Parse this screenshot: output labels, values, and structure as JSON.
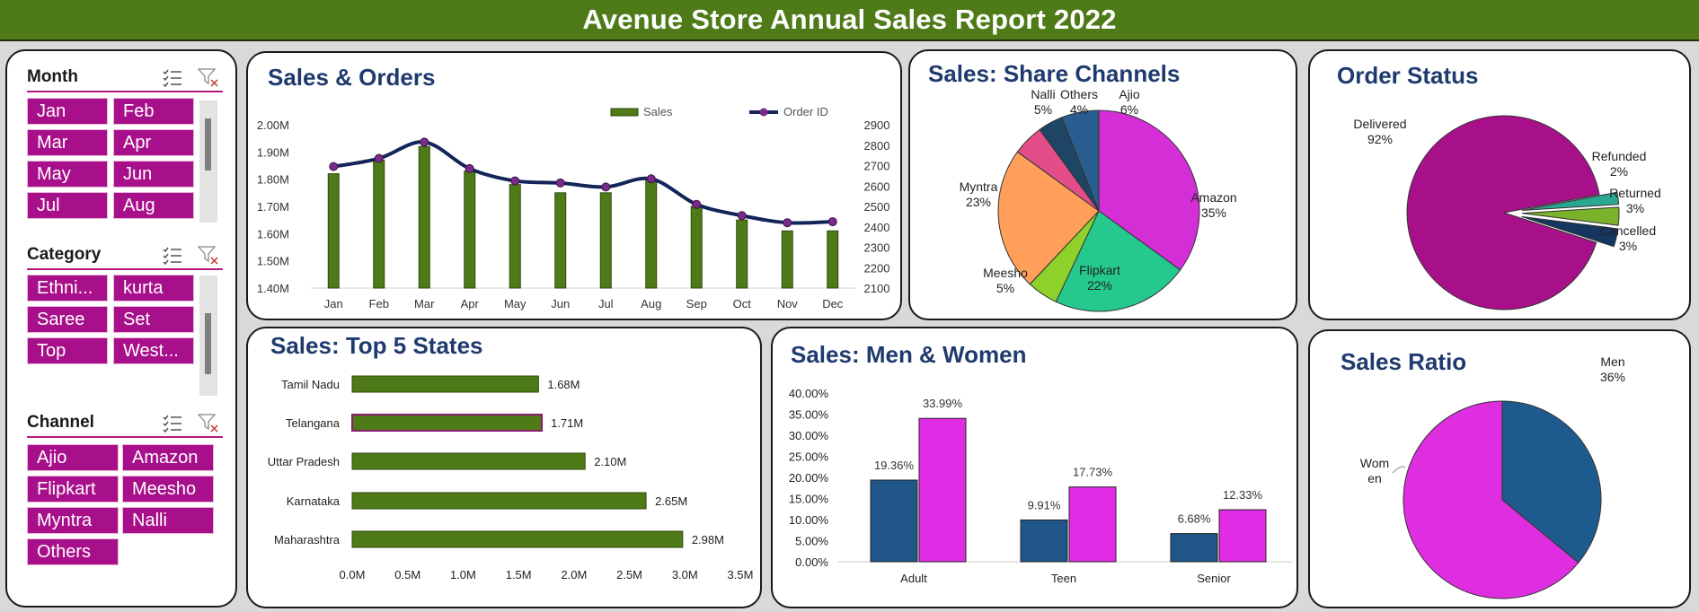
{
  "header": {
    "title": "Avenue Store Annual Sales Report 2022"
  },
  "slicers": {
    "month": {
      "title": "Month",
      "items": [
        "Jan",
        "Feb",
        "Mar",
        "Apr",
        "May",
        "Jun",
        "Jul",
        "Aug"
      ]
    },
    "category": {
      "title": "Category",
      "items": [
        "Ethni...",
        "kurta",
        "Saree",
        "Set",
        "Top",
        "West..."
      ]
    },
    "channel": {
      "title": "Channel",
      "items": [
        "Ajio",
        "Amazon",
        "Flipkart",
        "Meesho",
        "Myntra",
        "Nalli",
        "Others"
      ]
    }
  },
  "colors": {
    "green": "#4f7a18",
    "navy": "#14245a",
    "magenta": "#e12be4",
    "blue": "#1f5589",
    "title_blue": "#1f3a6e",
    "chip": "#a80f8a"
  },
  "chart_data": [
    {
      "id": "sales_orders",
      "type": "bar+line",
      "title": "Sales & Orders",
      "categories": [
        "Jan",
        "Feb",
        "Mar",
        "Apr",
        "May",
        "Jun",
        "Jul",
        "Aug",
        "Sep",
        "Oct",
        "Nov",
        "Dec"
      ],
      "series": [
        {
          "name": "Sales",
          "type": "bar",
          "axis": "left",
          "values": [
            1.82,
            1.87,
            1.92,
            1.83,
            1.78,
            1.75,
            1.75,
            1.8,
            1.7,
            1.65,
            1.61,
            1.61
          ]
        },
        {
          "name": "Order ID",
          "type": "line",
          "axis": "right",
          "values": [
            2695,
            2735,
            2815,
            2685,
            2625,
            2615,
            2595,
            2635,
            2510,
            2455,
            2420,
            2425
          ]
        }
      ],
      "ylim_left": [
        1.4,
        2.0
      ],
      "yticks_left": [
        "1.40M",
        "1.50M",
        "1.60M",
        "1.70M",
        "1.80M",
        "1.90M",
        "2.00M"
      ],
      "ylim_right": [
        2100,
        2900
      ],
      "yticks_right": [
        "2100",
        "2200",
        "2300",
        "2400",
        "2500",
        "2600",
        "2700",
        "2800",
        "2900"
      ],
      "legend": "top-right"
    },
    {
      "id": "share_channels",
      "type": "pie",
      "title": "Sales: Share Channels",
      "slices": [
        {
          "label": "Amazon",
          "value": 35,
          "text": "35%"
        },
        {
          "label": "Flipkart",
          "value": 22,
          "text": "22%"
        },
        {
          "label": "Meesho",
          "value": 5,
          "text": "5%"
        },
        {
          "label": "Myntra",
          "value": 23,
          "text": "23%"
        },
        {
          "label": "Nalli",
          "value": 5,
          "text": "5%"
        },
        {
          "label": "Others",
          "value": 4,
          "text": "4%"
        },
        {
          "label": "Ajio",
          "value": 6,
          "text": "6%"
        }
      ]
    },
    {
      "id": "order_status",
      "type": "pie",
      "title": "Order Status",
      "slices": [
        {
          "label": "Delivered",
          "value": 92,
          "text": "92%"
        },
        {
          "label": "Refunded",
          "value": 2,
          "text": "2%"
        },
        {
          "label": "Returned",
          "value": 3,
          "text": "3%"
        },
        {
          "label": "Cancelled",
          "value": 3,
          "text": "3%"
        }
      ]
    },
    {
      "id": "top5_states",
      "type": "bar",
      "orientation": "horizontal",
      "title": "Sales: Top 5 States",
      "categories": [
        "Tamil Nadu",
        "Telangana",
        "Uttar Pradesh",
        "Karnataka",
        "Maharashtra"
      ],
      "values": [
        1.68,
        1.71,
        2.1,
        2.65,
        2.98
      ],
      "labels": [
        "1.68M",
        "1.71M",
        "2.10M",
        "2.65M",
        "2.98M"
      ],
      "xlim": [
        0,
        3.5
      ],
      "xticks": [
        "0.0M",
        "0.5M",
        "1.0M",
        "1.5M",
        "2.0M",
        "2.5M",
        "3.0M",
        "3.5M"
      ]
    },
    {
      "id": "men_women",
      "type": "bar",
      "title": "Sales: Men & Women",
      "categories": [
        "Adult",
        "Teen",
        "Senior"
      ],
      "series": [
        {
          "values": [
            19.36,
            9.91,
            6.68
          ],
          "labels": [
            "19.36%",
            "9.91%",
            "6.68%"
          ]
        },
        {
          "values": [
            33.99,
            17.73,
            12.33
          ],
          "labels": [
            "33.99%",
            "17.73%",
            "12.33%"
          ]
        }
      ],
      "ylim": [
        0,
        40
      ],
      "yticks": [
        "0.00%",
        "5.00%",
        "10.00%",
        "15.00%",
        "20.00%",
        "25.00%",
        "30.00%",
        "35.00%",
        "40.00%"
      ]
    },
    {
      "id": "sales_ratio",
      "type": "pie",
      "title": "Sales Ratio",
      "slices": [
        {
          "label": "Men",
          "value": 36,
          "text": "36%"
        },
        {
          "label": "Wom en",
          "label_lines": [
            "Wom",
            "en"
          ],
          "value": 64,
          "text": ""
        }
      ]
    }
  ]
}
